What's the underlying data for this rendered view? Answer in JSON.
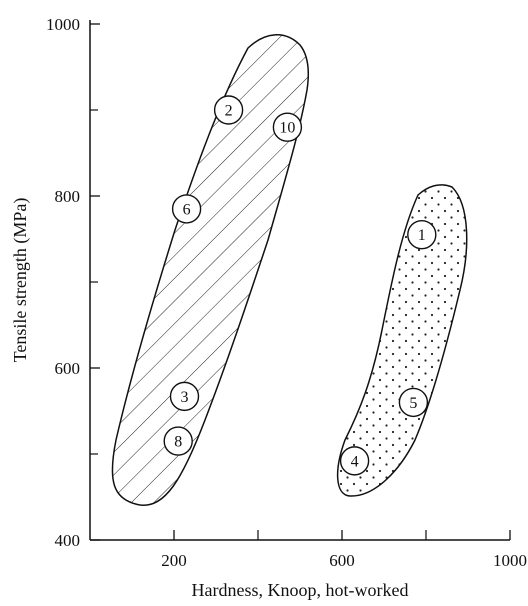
{
  "chart_data": {
    "type": "scatter",
    "title": "",
    "xlabel": "Hardness, Knoop, hot-worked",
    "ylabel": "Tensile strength  (MPa)",
    "xlim": [
      0,
      1000
    ],
    "ylim": [
      400,
      1000
    ],
    "x_ticks": [
      200,
      600,
      1000
    ],
    "x_minor_ticks": [
      400,
      800
    ],
    "y_ticks": [
      400,
      600,
      800,
      1000
    ],
    "y_minor_ticks": [
      500,
      700,
      900
    ],
    "grid": false,
    "series": [
      {
        "region": "hatched",
        "points": [
          {
            "label": "2",
            "x": 330,
            "y": 900
          },
          {
            "label": "10",
            "x": 470,
            "y": 880
          },
          {
            "label": "6",
            "x": 230,
            "y": 785
          },
          {
            "label": "3",
            "x": 225,
            "y": 567
          },
          {
            "label": "8",
            "x": 210,
            "y": 515
          }
        ]
      },
      {
        "region": "dotted",
        "points": [
          {
            "label": "1",
            "x": 790,
            "y": 755
          },
          {
            "label": "5",
            "x": 770,
            "y": 560
          },
          {
            "label": "4",
            "x": 630,
            "y": 492
          }
        ]
      }
    ]
  }
}
